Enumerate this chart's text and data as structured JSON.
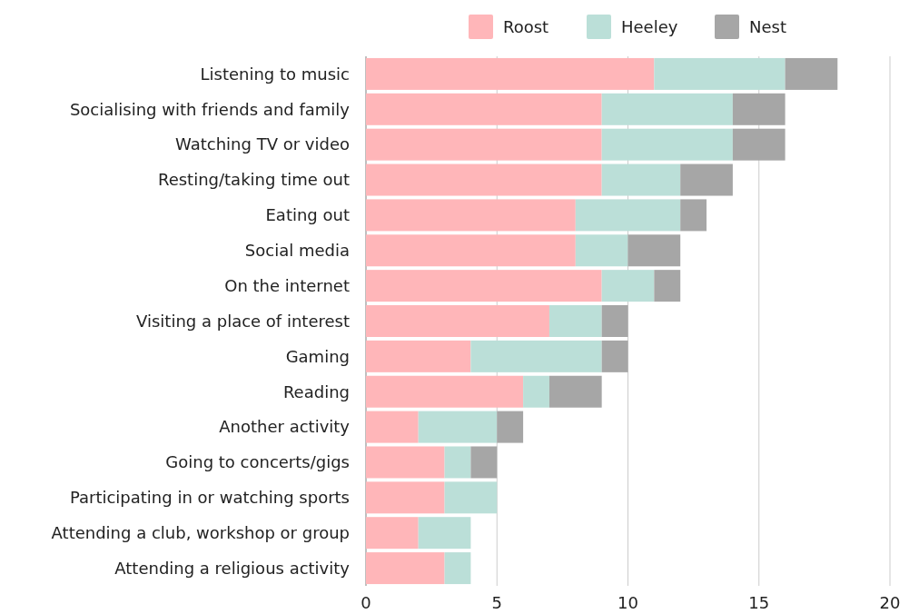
{
  "chart_data": {
    "type": "bar",
    "orientation": "horizontal",
    "stacked": true,
    "categories": [
      "Listening to music",
      "Socialising with friends and family",
      "Watching TV or video",
      "Resting/taking time out",
      "Eating out",
      "Social media",
      "On the internet",
      "Visiting a place of interest",
      "Gaming",
      "Reading",
      "Another activity",
      "Going to concerts/gigs",
      "Participating in or watching sports",
      "Attending a club, workshop or group",
      "Attending a religious activity"
    ],
    "series": [
      {
        "name": "Roost",
        "color": "#ffb6b9",
        "values": [
          11,
          9,
          9,
          9,
          8,
          8,
          9,
          7,
          4,
          6,
          2,
          3,
          3,
          2,
          3
        ]
      },
      {
        "name": "Heeley",
        "color": "#bbdfd8",
        "values": [
          5,
          5,
          5,
          3,
          4,
          2,
          2,
          2,
          5,
          1,
          3,
          1,
          2,
          2,
          1
        ]
      },
      {
        "name": "Nest",
        "color": "#a6a6a6",
        "values": [
          2,
          2,
          2,
          2,
          1,
          2,
          1,
          1,
          1,
          2,
          1,
          1,
          0,
          0,
          0
        ]
      }
    ],
    "xlim": [
      0,
      20
    ],
    "xticks": [
      0,
      5,
      10,
      15,
      20
    ],
    "grid": "x",
    "legend": "top right"
  }
}
